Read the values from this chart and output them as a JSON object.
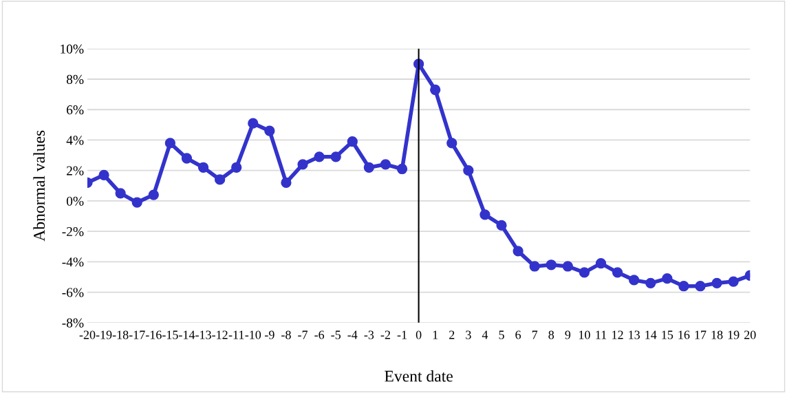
{
  "chart_data": {
    "type": "line",
    "xlabel": "Event date",
    "ylabel": "Abnormal values",
    "x": [
      -20,
      -19,
      -18,
      -17,
      -16,
      -15,
      -14,
      -13,
      -12,
      -11,
      -10,
      -9,
      -8,
      -7,
      -6,
      -5,
      -4,
      -3,
      -2,
      -1,
      0,
      1,
      2,
      3,
      4,
      5,
      6,
      7,
      8,
      9,
      10,
      11,
      12,
      13,
      14,
      15,
      16,
      17,
      18,
      19,
      20
    ],
    "series": [
      {
        "color": "#3333cc",
        "values": [
          1.2,
          1.7,
          0.5,
          -0.1,
          0.4,
          3.8,
          2.8,
          2.2,
          1.4,
          2.2,
          5.1,
          4.6,
          1.2,
          2.4,
          2.9,
          2.9,
          3.9,
          2.2,
          2.4,
          2.1,
          9.0,
          7.3,
          3.8,
          2.0,
          -0.9,
          -1.6,
          -3.3,
          -4.3,
          -4.2,
          -4.3,
          -4.7,
          -4.1,
          -4.7,
          -5.2,
          -5.4,
          -5.1,
          -5.6,
          -5.6,
          -5.4,
          -5.3,
          -4.9
        ]
      }
    ],
    "xlim": [
      -20,
      20
    ],
    "xticks": [
      -20,
      -19,
      -18,
      -17,
      -16,
      -15,
      -14,
      -13,
      -12,
      -11,
      -10,
      -9,
      -8,
      -7,
      -6,
      -5,
      -4,
      -3,
      -2,
      -1,
      0,
      1,
      2,
      3,
      4,
      5,
      6,
      7,
      8,
      9,
      10,
      11,
      12,
      13,
      14,
      15,
      16,
      17,
      18,
      19,
      20
    ],
    "ylim": [
      -8,
      10
    ],
    "yticks": [
      {
        "value": -8,
        "label": "-8%"
      },
      {
        "value": -6,
        "label": "-6%"
      },
      {
        "value": -4,
        "label": "-4%"
      },
      {
        "value": -2,
        "label": "-2%"
      },
      {
        "value": 0,
        "label": "0%"
      },
      {
        "value": 2,
        "label": "2%"
      },
      {
        "value": 4,
        "label": "4%"
      },
      {
        "value": 6,
        "label": "6%"
      },
      {
        "value": 8,
        "label": "8%"
      },
      {
        "value": 10,
        "label": "10%"
      }
    ],
    "ref_lines": [
      {
        "axis": "x",
        "value": 0,
        "color": "#000000"
      }
    ],
    "grid": "y",
    "marker": "circle",
    "line_style": "solid"
  }
}
